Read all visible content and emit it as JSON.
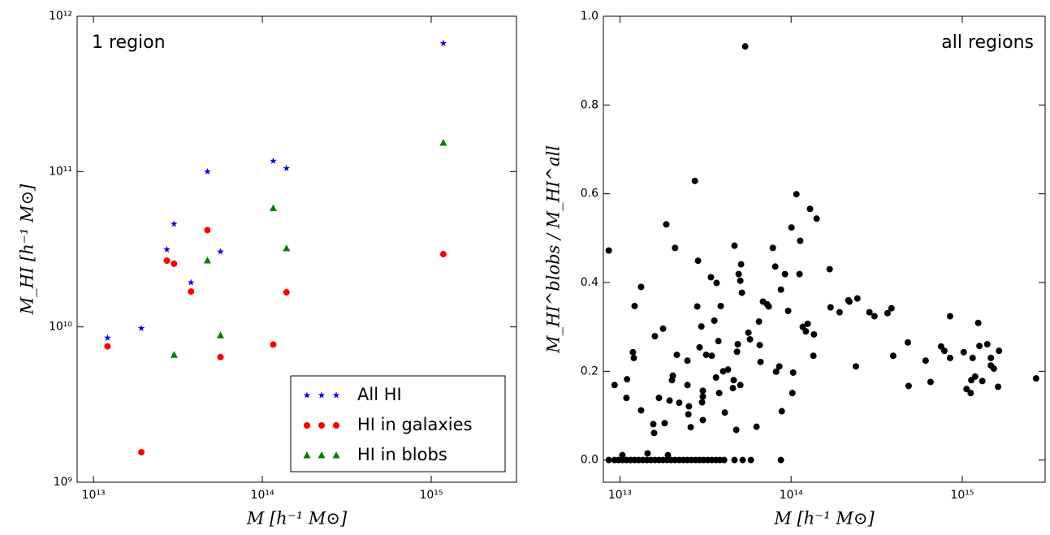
{
  "chart_data": [
    {
      "type": "scatter",
      "xscale": "log",
      "yscale": "log",
      "xlabel": "M [h⁻¹ M⊙]",
      "ylabel": "M_HI [h⁻¹ M⊙]",
      "annotation": "1 region",
      "xlim": [
        8000000000000.0,
        3200000000000000.0
      ],
      "ylim": [
        1000000000.0,
        1000000000000.0
      ],
      "xticks": [
        {
          "value": 10000000000000.0,
          "label": "10¹³"
        },
        {
          "value": 100000000000000.0,
          "label": "10¹⁴"
        },
        {
          "value": 1000000000000000.0,
          "label": "10¹⁵"
        }
      ],
      "yticks": [
        {
          "value": 1000000000.0,
          "label": "10⁹"
        },
        {
          "value": 10000000000.0,
          "label": "10¹⁰"
        },
        {
          "value": 100000000000.0,
          "label": "10¹¹"
        },
        {
          "value": 1000000000000.0,
          "label": "10¹²"
        }
      ],
      "legend": "lower right",
      "series": [
        {
          "name": "All HI",
          "color": "#0000ff",
          "marker": "star",
          "x": [
            12100000000000.0,
            19200000000000.0,
            27200000000000.0,
            30000000000000.0,
            37800000000000.0,
            47300000000000.0,
            56500000000000.0,
            116000000000000.0,
            139000000000000.0,
            1180000000000000.0
          ],
          "values": [
            8500000000.0,
            9800000000.0,
            31500000000.0,
            46000000000.0,
            19300000000.0,
            100000000000.0,
            30500000000.0,
            117000000000.0,
            105000000000.0,
            670000000000.0
          ]
        },
        {
          "name": "HI in galaxies",
          "color": "#ff0000",
          "marker": "circle",
          "x": [
            12100000000000.0,
            19200000000000.0,
            27200000000000.0,
            30000000000000.0,
            37800000000000.0,
            47300000000000.0,
            56500000000000.0,
            116000000000000.0,
            139000000000000.0,
            1180000000000000.0
          ],
          "values": [
            7500000000.0,
            1560000000.0,
            26700000000.0,
            25500000000.0,
            16900000000.0,
            42000000000.0,
            6400000000.0,
            7700000000.0,
            16700000000.0,
            29400000000.0
          ]
        },
        {
          "name": "HI in blobs",
          "color": "#008000",
          "marker": "triangle",
          "x": [
            30000000000000.0,
            47300000000000.0,
            56500000000000.0,
            116000000000000.0,
            139000000000000.0,
            1180000000000000.0
          ],
          "values": [
            6600000000.0,
            26700000000.0,
            8800000000.0,
            58000000000.0,
            32000000000.0,
            153000000000.0
          ]
        }
      ]
    },
    {
      "type": "scatter",
      "xscale": "log",
      "xlabel": "M [h⁻¹ M⊙]",
      "ylabel": "M_HI^blobs / M_HI^all",
      "annotation": "all regions",
      "xlim": [
        8000000000000.0,
        3050000000000000.0
      ],
      "ylim": [
        -0.05,
        1.0
      ],
      "xticks": [
        {
          "value": 10000000000000.0,
          "label": "10¹³"
        },
        {
          "value": 100000000000000.0,
          "label": "10¹⁴"
        },
        {
          "value": 1000000000000000.0,
          "label": "10¹⁵"
        }
      ],
      "yticks": [
        {
          "value": 0,
          "label": "0.0"
        },
        0.2,
        0.4,
        0.6,
        0.8,
        {
          "value": 1,
          "label": "1.0"
        }
      ],
      "series": [
        {
          "color": "#000000",
          "marker": "circle",
          "x": [
            8600000000000.0,
            9300000000000.0,
            11000000000000.0,
            10910000000000.0,
            11910000000000.0,
            12050000000000.0,
            12180000000000.0,
            13290000000000.0,
            13290000000000.0,
            15830000000000.0,
            15660000000000.0,
            16000000000000.0,
            16900000000000.0,
            17860000000000.0,
            18250000000000.0,
            18650000000000.0,
            19500000000000.0,
            20140000000000.0,
            20360000000000.0,
            21000000000000.0,
            21500000000000.0,
            22200000000000.0,
            24800000000000.0,
            24800000000000.0,
            25100000000000.0,
            25300000000000.0,
            25900000000000.0,
            27400000000000.0,
            28300000000000.0,
            28600000000000.0,
            29200000000000.0,
            29900000000000.0,
            30500000000000.0,
            30500000000000.0,
            30200000000000.0,
            30500000000000.0,
            31900000000000.0,
            34000000000000.0,
            34400000000000.0,
            35600000000000.0,
            36400000000000.0,
            36700000000000.0,
            37600000000000.0,
            38000000000000.0,
            38800000000000.0,
            40100000000000.0,
            41000000000000.0,
            42800000000000.0,
            45700000000000.0,
            46200000000000.0,
            47800000000000.0,
            48300000000000.0,
            48800000000000.0,
            46700000000000.0,
            49400000000000.0,
            50500000000000.0,
            51600000000000.0,
            50500000000000.0,
            51000000000000.0,
            53900000000000.0,
            56300000000000.0,
            57500000000000.0,
            62800000000000.0,
            64900000000000.0,
            65600000000000.0,
            66300000000000.0,
            68500000000000.0,
            72400000000000.0,
            74000000000000.0,
            78200000000000.0,
            80800000000000.0,
            81700000000000.0,
            85300000000000.0,
            87200000000000.0,
            88200000000000.0,
            92100000000000.0,
            96200000000000.0,
            101700000000000.0,
            102800000000000.0,
            100500000000000.0,
            107400000000000.0,
            112000000000000.0,
            113000000000000.0,
            117000000000000.0,
            122000000000000.0,
            125000000000000.0,
            129000000000000.0,
            135000000000000.0,
            136000000000000.0,
            141000000000000.0,
            168000000000000.0,
            170000000000000.0,
            192000000000000.0,
            216000000000000.0,
            219000000000000.0,
            244000000000000.0,
            239000000000000.0,
            287000000000000.0,
            307000000000000.0,
            366000000000000.0,
            386000000000000.0,
            395000000000000.0,
            481000000000000.0,
            486000000000000.0,
            611000000000000.0,
            653000000000000.0,
            752000000000000.0,
            786000000000000.0,
            849000000000000.0,
            849000000000000.0,
            1020000000000000.0,
            1060000000000000.0,
            1120000000000000.0,
            1130000000000000.0,
            1150000000000000.0,
            1190000000000000.0,
            1240000000000000.0,
            1260000000000000.0,
            1310000000000000.0,
            1400000000000000.0,
            1470000000000000.0,
            1470000000000000.0,
            1530000000000000.0,
            1640000000000000.0,
            1620000000000000.0,
            2700000000000000.0,
            10330000000000.0,
            14500000000000.0,
            19060000000000.0,
            8600000000000.0,
            9300000000000.0,
            9800000000000.0,
            10330000000000.0,
            10910000000000.0,
            11530000000000.0,
            12180000000000.0,
            12860000000000.0,
            13590000000000.0,
            14350000000000.0,
            15150000000000.0,
            16000000000000.0,
            16900000000000.0,
            17860000000000.0,
            18860000000000.0,
            19910000000000.0,
            21000000000000.0,
            22200000000000.0,
            23500000000000.0,
            24800000000000.0,
            26200000000000.0,
            27700000000000.0,
            29200000000000.0,
            30800000000000.0,
            32600000000000.0,
            34400000000000.0,
            36400000000000.0,
            38400000000000.0,
            40600000000000.0,
            46700000000000.0,
            52100000000000.0,
            58200000000000.0,
            87200000000000.0
          ],
          "values": [
            0.472,
            0.169,
            0.182,
            0.14,
            0.243,
            0.23,
            0.347,
            0.39,
            0.112,
            0.061,
            0.081,
            0.279,
            0.14,
            0.296,
            0.083,
            0.531,
            0.134,
            0.18,
            0.19,
            0.478,
            0.237,
            0.129,
            0.169,
            0.224,
            0.103,
            0.121,
            0.074,
            0.629,
            0.346,
            0.449,
            0.254,
            0.301,
            0.156,
            0.143,
            0.13,
            0.09,
            0.237,
            0.412,
            0.235,
            0.314,
            0.186,
            0.399,
            0.268,
            0.151,
            0.347,
            0.2,
            0.107,
            0.204,
            0.162,
            0.18,
            0.068,
            0.244,
            0.261,
            0.483,
            0.419,
            0.404,
            0.377,
            0.169,
            0.441,
            0.932,
            0.287,
            0.272,
            0.075,
            0.312,
            0.259,
            0.221,
            0.357,
            0.351,
            0.346,
            0.478,
            0.436,
            0.199,
            0.211,
            0.384,
            0.11,
            0.419,
            0.336,
            0.151,
            0.197,
            0.524,
            0.599,
            0.419,
            0.494,
            0.3,
            0.29,
            0.307,
            0.566,
            0.235,
            0.283,
            0.544,
            0.43,
            0.344,
            0.333,
            0.36,
            0.357,
            0.364,
            0.211,
            0.333,
            0.324,
            0.331,
            0.342,
            0.235,
            0.265,
            0.167,
            0.224,
            0.176,
            0.256,
            0.246,
            0.324,
            0.23,
            0.243,
            0.16,
            0.151,
            0.18,
            0.23,
            0.188,
            0.309,
            0.257,
            0.178,
            0.261,
            0.23,
            0.213,
            0.206,
            0.246,
            0.165,
            0.184,
            0.011,
            0.015,
            0.011,
            0,
            0,
            0,
            0,
            0,
            0,
            0,
            0,
            0,
            0,
            0,
            0,
            0,
            0,
            0,
            0,
            0,
            0,
            0,
            0,
            0,
            0,
            0,
            0,
            0,
            0,
            0,
            0,
            0,
            0,
            0,
            0,
            0
          ]
        }
      ]
    }
  ]
}
